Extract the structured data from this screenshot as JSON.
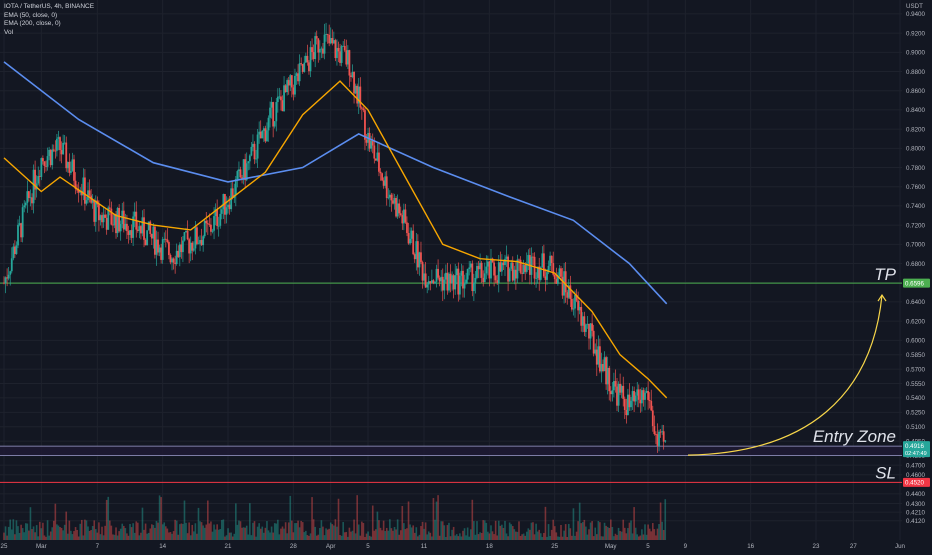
{
  "header": {
    "symbol_line": "IOTA / TetherUS, 4h, BINANCE",
    "indicators": [
      "EMA (50, close, 0)",
      "EMA (200, close, 0)",
      "Vol"
    ]
  },
  "colors": {
    "background": "#131722",
    "grid": "#1e222d",
    "up": "#26a69a",
    "down": "#ef5350",
    "ema50": "#f7a600",
    "ema200": "#5b8def",
    "tp": "#4caf50",
    "sl": "#f23645",
    "entry_zone_fill": "#1e1a33",
    "entry_zone_border": "#9e9ecf",
    "projection": "#f7d64a"
  },
  "chart_data": {
    "type": "candlestick",
    "y_unit": "USDT",
    "ylim": [
      0.4045,
      0.9545
    ],
    "y_ticks": [
      0.94,
      0.92,
      0.9,
      0.88,
      0.86,
      0.84,
      0.82,
      0.8,
      0.78,
      0.76,
      0.74,
      0.72,
      0.7,
      0.68,
      0.66,
      0.64,
      0.62,
      0.6,
      0.585,
      0.57,
      0.555,
      0.54,
      0.525,
      0.51,
      0.495,
      0.48,
      0.47,
      0.46,
      0.44,
      0.43,
      0.421,
      0.412
    ],
    "x_ticks": [
      "25",
      "Mar",
      "7",
      "14",
      "21",
      "28",
      "Apr",
      "5",
      "11",
      "18",
      "25",
      "May",
      "5",
      "9",
      "16",
      "23",
      "27",
      "Jun"
    ],
    "price_path": [
      {
        "x": "Feb 25",
        "y": 0.66
      },
      {
        "x": "Mar 1",
        "y": 0.79
      },
      {
        "x": "Mar 3",
        "y": 0.8
      },
      {
        "x": "Mar 7",
        "y": 0.73
      },
      {
        "x": "Mar 11",
        "y": 0.72
      },
      {
        "x": "Mar 15",
        "y": 0.69
      },
      {
        "x": "Mar 19",
        "y": 0.715
      },
      {
        "x": "Mar 23",
        "y": 0.78
      },
      {
        "x": "Mar 26",
        "y": 0.84
      },
      {
        "x": "Mar 29",
        "y": 0.88
      },
      {
        "x": "Mar 31",
        "y": 0.915
      },
      {
        "x": "Apr 3",
        "y": 0.89
      },
      {
        "x": "Apr 5",
        "y": 0.81
      },
      {
        "x": "Apr 7",
        "y": 0.76
      },
      {
        "x": "Apr 9",
        "y": 0.72
      },
      {
        "x": "Apr 11",
        "y": 0.67
      },
      {
        "x": "Apr 14",
        "y": 0.66
      },
      {
        "x": "Apr 18",
        "y": 0.67
      },
      {
        "x": "Apr 22",
        "y": 0.68
      },
      {
        "x": "Apr 25",
        "y": 0.675
      },
      {
        "x": "Apr 27",
        "y": 0.64
      },
      {
        "x": "Apr 29",
        "y": 0.6
      },
      {
        "x": "May 1",
        "y": 0.555
      },
      {
        "x": "May 3",
        "y": 0.53
      },
      {
        "x": "May 5",
        "y": 0.545
      },
      {
        "x": "May 6",
        "y": 0.49
      },
      {
        "x": "May 7",
        "y": 0.492
      }
    ],
    "ema50": [
      {
        "x": "Feb 25",
        "y": 0.79
      },
      {
        "x": "Mar 1",
        "y": 0.755
      },
      {
        "x": "Mar 3",
        "y": 0.77
      },
      {
        "x": "Mar 9",
        "y": 0.73
      },
      {
        "x": "Mar 13",
        "y": 0.72
      },
      {
        "x": "Mar 17",
        "y": 0.715
      },
      {
        "x": "Mar 21",
        "y": 0.745
      },
      {
        "x": "Mar 25",
        "y": 0.775
      },
      {
        "x": "Mar 29",
        "y": 0.835
      },
      {
        "x": "Apr 2",
        "y": 0.87
      },
      {
        "x": "Apr 5",
        "y": 0.84
      },
      {
        "x": "Apr 9",
        "y": 0.77
      },
      {
        "x": "Apr 13",
        "y": 0.7
      },
      {
        "x": "Apr 17",
        "y": 0.685
      },
      {
        "x": "Apr 21",
        "y": 0.682
      },
      {
        "x": "Apr 25",
        "y": 0.67
      },
      {
        "x": "Apr 29",
        "y": 0.63
      },
      {
        "x": "May 2",
        "y": 0.585
      },
      {
        "x": "May 5",
        "y": 0.56
      },
      {
        "x": "May 7",
        "y": 0.54
      }
    ],
    "ema200": [
      {
        "x": "Feb 25",
        "y": 0.89
      },
      {
        "x": "Mar 5",
        "y": 0.83
      },
      {
        "x": "Mar 13",
        "y": 0.785
      },
      {
        "x": "Mar 21",
        "y": 0.765
      },
      {
        "x": "Mar 29",
        "y": 0.78
      },
      {
        "x": "Apr 4",
        "y": 0.815
      },
      {
        "x": "Apr 12",
        "y": 0.78
      },
      {
        "x": "Apr 20",
        "y": 0.75
      },
      {
        "x": "Apr 27",
        "y": 0.725
      },
      {
        "x": "May 3",
        "y": 0.68
      },
      {
        "x": "May 7",
        "y": 0.638
      }
    ],
    "levels": {
      "tp": {
        "label": "TP",
        "value": 0.6596,
        "tag": "0.6596"
      },
      "entry_zone": {
        "label": "Entry Zone",
        "top": 0.4898,
        "bottom": 0.48,
        "tag": "0.4916",
        "countdown": "02:47:49"
      },
      "sl": {
        "label": "SL",
        "value": 0.452,
        "tag": "0.4520"
      }
    }
  }
}
